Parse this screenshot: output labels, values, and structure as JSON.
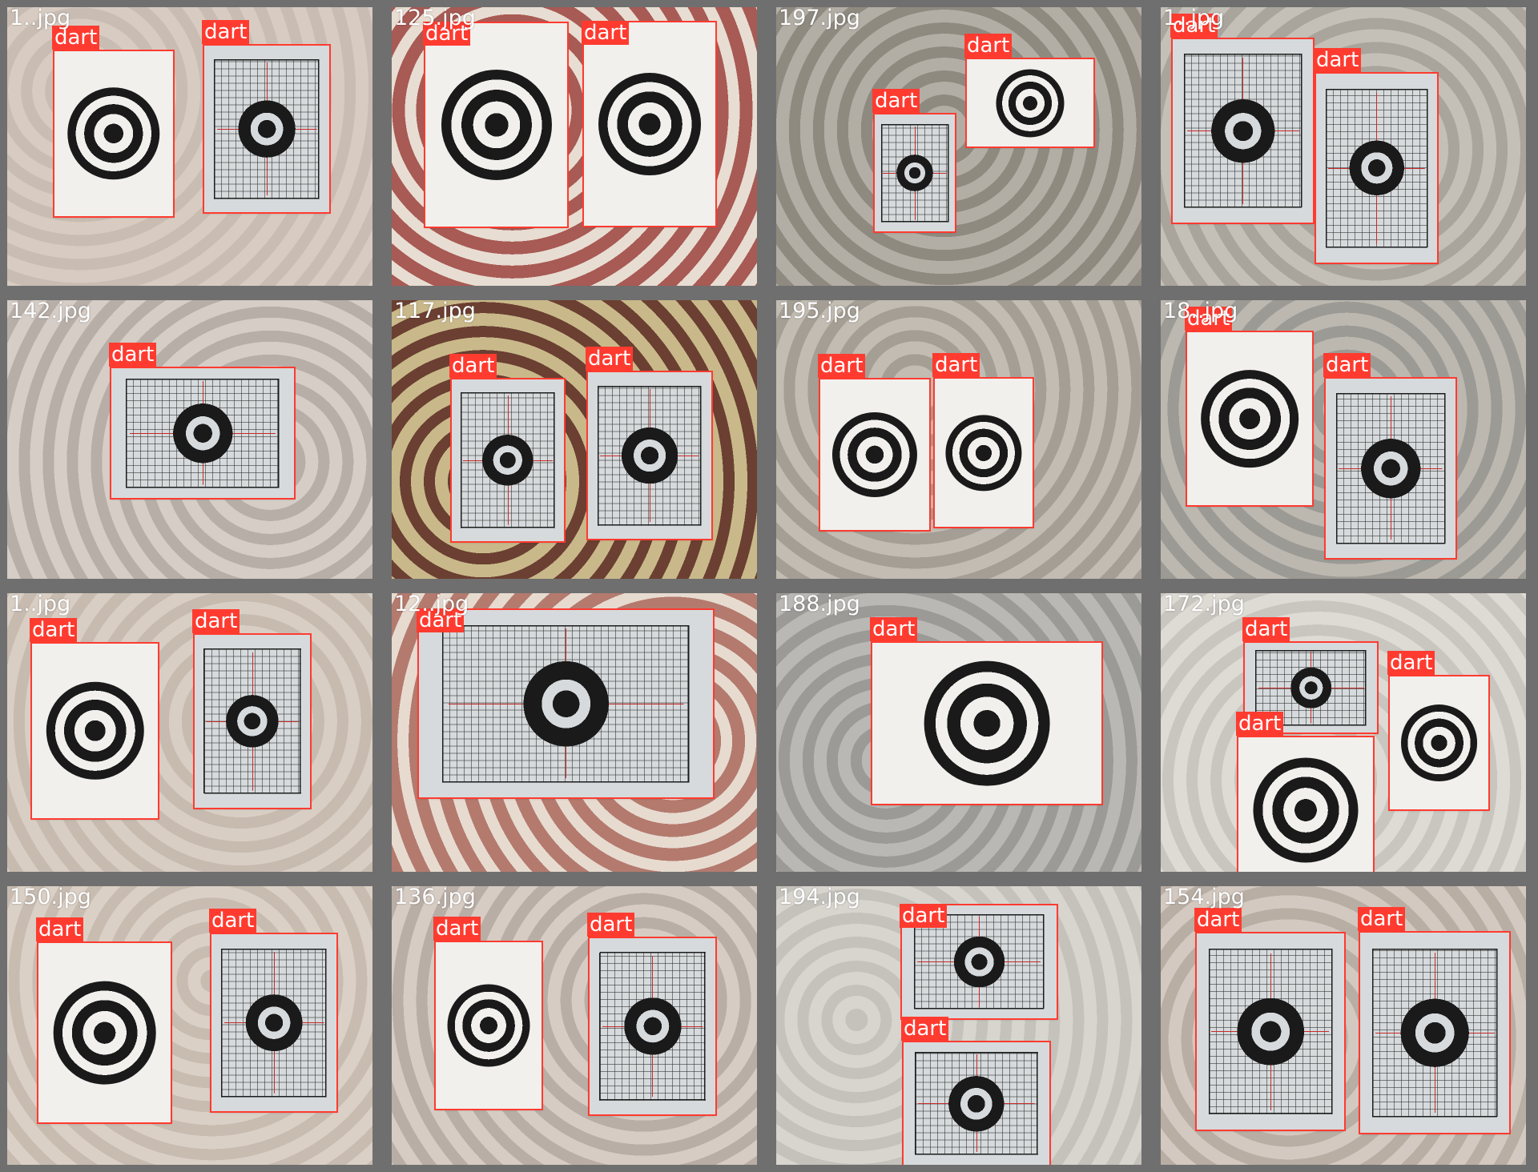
{
  "colors": {
    "box": "#ff3b30",
    "label_text": "#ffffff",
    "target_ring": "#1a1a1a"
  },
  "tiles": [
    {
      "label": "1..jpg",
      "bg": [
        "#c9bdb3",
        "#d8ccc2"
      ],
      "detections": [
        {
          "label": "dart"
        },
        {
          "label": "dart"
        }
      ]
    },
    {
      "label": "125.jpg",
      "bg": [
        "#e8ddd2",
        "#a85a54"
      ],
      "detections": [
        {
          "label": "dart"
        },
        {
          "label": "dart"
        }
      ]
    },
    {
      "label": "197.jpg",
      "bg": [
        "#8f8a80",
        "#b3aea5"
      ],
      "detections": [
        {
          "label": "dart"
        },
        {
          "label": "dart"
        }
      ]
    },
    {
      "label": "1..jpg",
      "bg": [
        "#a9a49c",
        "#c4c0b8"
      ],
      "detections": [
        {
          "label": "dart"
        },
        {
          "label": "dart"
        }
      ]
    },
    {
      "label": "142.jpg",
      "bg": [
        "#b7aea8",
        "#d5cdc6"
      ],
      "detections": [
        {
          "label": "dart"
        }
      ]
    },
    {
      "label": "117.jpg",
      "bg": [
        "#6b3f32",
        "#c9b98a"
      ],
      "detections": [
        {
          "label": "dart"
        },
        {
          "label": "dart"
        }
      ]
    },
    {
      "label": "195.jpg",
      "bg": [
        "#a49e94",
        "#c2bcb2"
      ],
      "detections": [
        {
          "label": "dart"
        },
        {
          "label": "dart"
        }
      ]
    },
    {
      "label": "18..jpg",
      "bg": [
        "#9c9a94",
        "#bcb8b0"
      ],
      "detections": [
        {
          "label": "dart"
        },
        {
          "label": "dart"
        }
      ]
    },
    {
      "label": "1..jpg",
      "bg": [
        "#c7bbb0",
        "#d9cec4"
      ],
      "detections": [
        {
          "label": "dart"
        },
        {
          "label": "dart"
        }
      ]
    },
    {
      "label": "12..jpg",
      "bg": [
        "#e7dbd0",
        "#b47a6e"
      ],
      "detections": [
        {
          "label": "dart"
        }
      ]
    },
    {
      "label": "188.jpg",
      "bg": [
        "#9b9a97",
        "#b9b8b4"
      ],
      "detections": [
        {
          "label": "dart"
        }
      ]
    },
    {
      "label": "172.jpg",
      "bg": [
        "#c9c5bf",
        "#dedad4"
      ],
      "detections": [
        {
          "label": "dart"
        },
        {
          "label": "dart"
        },
        {
          "label": "dart"
        }
      ]
    },
    {
      "label": "150.jpg",
      "bg": [
        "#c8bcb1",
        "#dad0c6"
      ],
      "detections": [
        {
          "label": "dart"
        },
        {
          "label": "dart"
        }
      ]
    },
    {
      "label": "136.jpg",
      "bg": [
        "#b9aea6",
        "#d6ccc4"
      ],
      "detections": [
        {
          "label": "dart"
        },
        {
          "label": "dart"
        }
      ]
    },
    {
      "label": "194.jpg",
      "bg": [
        "#c5c2bc",
        "#d8d5cf"
      ],
      "detections": [
        {
          "label": "dart"
        },
        {
          "label": "dart"
        }
      ]
    },
    {
      "label": "154.jpg",
      "bg": [
        "#b8aea4",
        "#d3c9c0"
      ],
      "detections": [
        {
          "label": "dart"
        },
        {
          "label": "dart"
        }
      ]
    }
  ]
}
